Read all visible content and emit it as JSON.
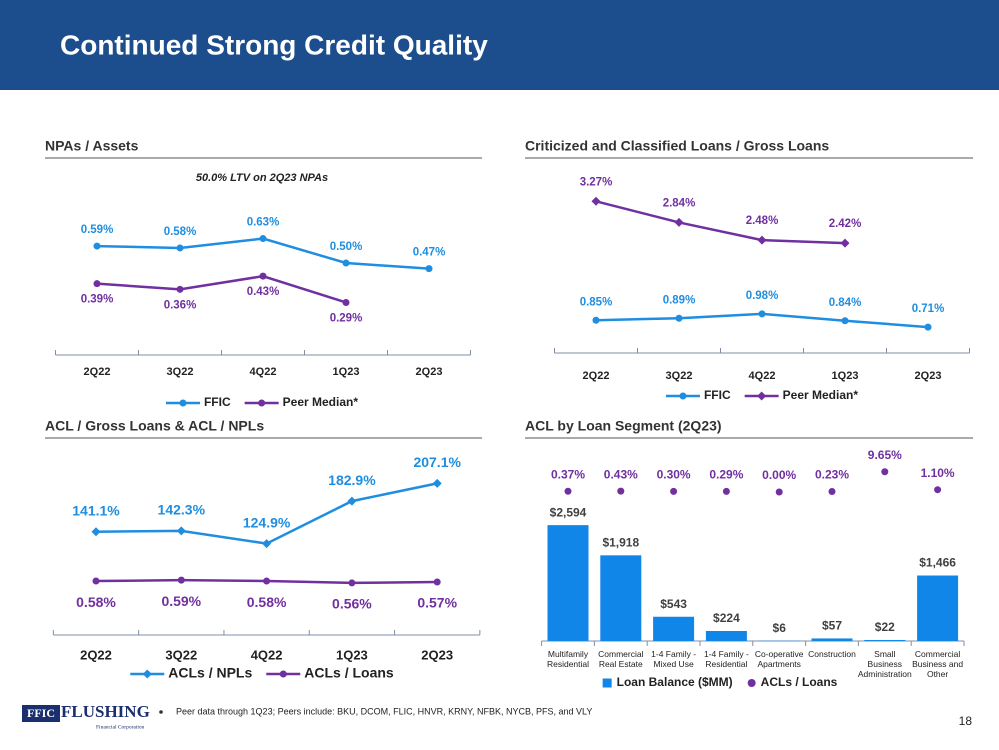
{
  "header": {
    "title": "Continued Strong Credit Quality"
  },
  "chart_data": [
    {
      "type": "line",
      "title": "NPAs / Assets",
      "subtitle": "50.0% LTV on 2Q23 NPAs",
      "categories": [
        "2Q22",
        "3Q22",
        "4Q22",
        "1Q23",
        "2Q23"
      ],
      "series": [
        {
          "name": "FFIC",
          "color": "#1f8ee0",
          "marker": "circle",
          "values": [
            0.59,
            0.58,
            0.63,
            0.5,
            0.47
          ],
          "value_labels": [
            "0.59%",
            "0.58%",
            "0.63%",
            "0.50%",
            "0.47%"
          ]
        },
        {
          "name": "Peer Median*",
          "color": "#7030a0",
          "marker": "circle",
          "values": [
            0.39,
            0.36,
            0.43,
            0.29,
            null
          ],
          "value_labels": [
            "0.39%",
            "0.36%",
            "0.43%",
            "0.29%",
            null
          ]
        }
      ],
      "ylim": [
        0,
        1
      ]
    },
    {
      "type": "line",
      "title": "Criticized and Classified Loans / Gross Loans",
      "categories": [
        "2Q22",
        "3Q22",
        "4Q22",
        "1Q23",
        "2Q23"
      ],
      "series": [
        {
          "name": "FFIC",
          "color": "#1f8ee0",
          "marker": "circle",
          "values": [
            0.85,
            0.89,
            0.98,
            0.84,
            0.71
          ],
          "value_labels": [
            "0.85%",
            "0.89%",
            "0.98%",
            "0.84%",
            "0.71%"
          ]
        },
        {
          "name": "Peer Median*",
          "color": "#7030a0",
          "marker": "diamond",
          "values": [
            3.27,
            2.84,
            2.48,
            2.42,
            null
          ],
          "value_labels": [
            "3.27%",
            "2.84%",
            "2.48%",
            "2.42%",
            null
          ]
        }
      ],
      "ylim": [
        0,
        3.5
      ]
    },
    {
      "type": "line",
      "title": "ACL / Gross Loans & ACL / NPLs",
      "categories": [
        "2Q22",
        "3Q22",
        "4Q22",
        "1Q23",
        "2Q23"
      ],
      "series": [
        {
          "name": "ACLs / NPLs",
          "color": "#1f8ee0",
          "marker": "diamond",
          "values": [
            141.1,
            142.3,
            124.9,
            182.9,
            207.1
          ],
          "value_labels": [
            "141.1%",
            "142.3%",
            "124.9%",
            "182.9%",
            "207.1%"
          ]
        },
        {
          "name": "ACLs / Loans",
          "color": "#7030a0",
          "marker": "circle",
          "axis": "y2",
          "values": [
            0.58,
            0.59,
            0.58,
            0.56,
            0.57
          ],
          "value_labels": [
            "0.58%",
            "0.59%",
            "0.58%",
            "0.56%",
            "0.57%"
          ]
        }
      ],
      "ylim": [
        0,
        250
      ],
      "y2lim": [
        0,
        2
      ]
    },
    {
      "type": "bar",
      "title": "ACL by Loan Segment (2Q23)",
      "categories": [
        "Multifamily Residential",
        "Commercial Real Estate",
        "1-4 Family - Mixed Use",
        "1-4 Family - Residential",
        "Co-operative Apartments",
        "Construction",
        "Small Business Administration",
        "Commercial Business and Other"
      ],
      "series": [
        {
          "name": "Loan Balance ($MM)",
          "color": "#0f86e8",
          "values": [
            2594,
            1918,
            543,
            224,
            6,
            57,
            22,
            1466
          ],
          "value_labels": [
            "$2,594",
            "$1,918",
            "$543",
            "$224",
            "$6",
            "$57",
            "$22",
            "$1,466"
          ]
        },
        {
          "name": "ACLs / Loans",
          "type": "scatter",
          "color": "#7030a0",
          "axis": "y2",
          "values": [
            0.37,
            0.43,
            0.3,
            0.29,
            0.0,
            0.23,
            9.65,
            1.1
          ],
          "value_labels": [
            "0.37%",
            "0.43%",
            "0.30%",
            "0.29%",
            "0.00%",
            "0.23%",
            "9.65%",
            "1.10%"
          ]
        }
      ],
      "ylim": [
        0,
        3000
      ],
      "y2lim": [
        0,
        10
      ]
    }
  ],
  "footer": {
    "logo": {
      "mark": "FFIC",
      "name": "FLUSHING",
      "tagline": "Financial Corporation"
    },
    "note": "Peer data through 1Q23; Peers include: BKU, DCOM, FLIC, HNVR, KRNY, NFBK, NYCB, PFS, and VLY",
    "page": "18"
  }
}
